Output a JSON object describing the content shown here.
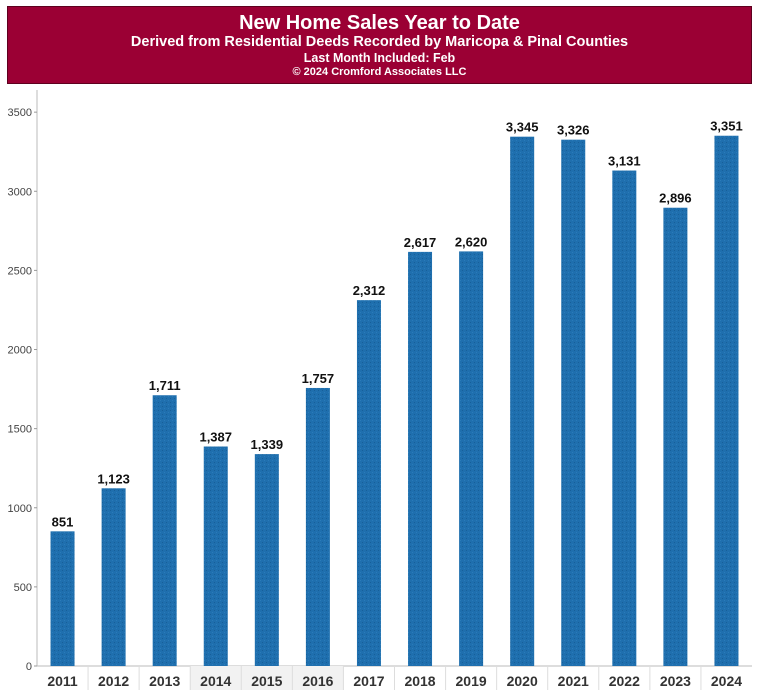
{
  "header": {
    "title": "New Home Sales Year to Date",
    "subtitle": "Derived from Residential Deeds Recorded by Maricopa & Pinal Counties",
    "last_month": "Last Month Included: Feb",
    "copyright": "© 2024 Cromford Associates LLC"
  },
  "colors": {
    "banner": "#9b0034",
    "bar": "#1f6fae"
  },
  "chart_data": {
    "type": "bar",
    "title": "New Home Sales Year to Date",
    "categories": [
      "2011",
      "2012",
      "2013",
      "2014",
      "2015",
      "2016",
      "2017",
      "2018",
      "2019",
      "2020",
      "2021",
      "2022",
      "2023",
      "2024"
    ],
    "values": [
      851,
      1123,
      1711,
      1387,
      1339,
      1757,
      2312,
      2617,
      2620,
      3345,
      3326,
      3131,
      2896,
      3351
    ],
    "data_labels": [
      "851",
      "1,123",
      "1,711",
      "1,387",
      "1,339",
      "1,757",
      "2,312",
      "2,617",
      "2,620",
      "3,345",
      "3,326",
      "3,131",
      "2,896",
      "3,351"
    ],
    "yticks": [
      0,
      500,
      1000,
      1500,
      2000,
      2500,
      3000,
      3500
    ],
    "ylim": [
      0,
      3640
    ],
    "xlabel": "",
    "ylabel": "",
    "grid": false,
    "legend": "none"
  }
}
